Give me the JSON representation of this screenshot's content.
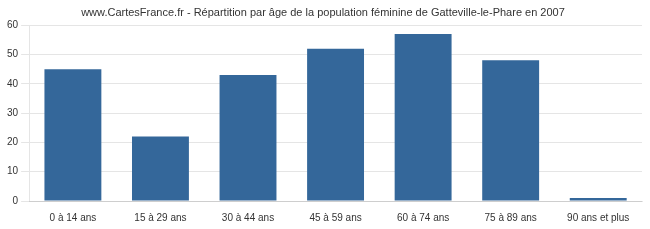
{
  "chart_data": {
    "type": "bar",
    "title": "www.CartesFrance.fr - Répartition par âge de la population féminine de Gatteville-le-Phare en 2007",
    "categories": [
      "0 à 14 ans",
      "15 à 29 ans",
      "30 à 44 ans",
      "45 à 59 ans",
      "60 à 74 ans",
      "75 à 89 ans",
      "90 ans et plus"
    ],
    "values": [
      45,
      22,
      43,
      52,
      57,
      48,
      1
    ],
    "color": "#34679a",
    "ylim": [
      0,
      60
    ],
    "yticks": [
      0,
      10,
      20,
      30,
      40,
      50,
      60
    ],
    "grid": true
  }
}
